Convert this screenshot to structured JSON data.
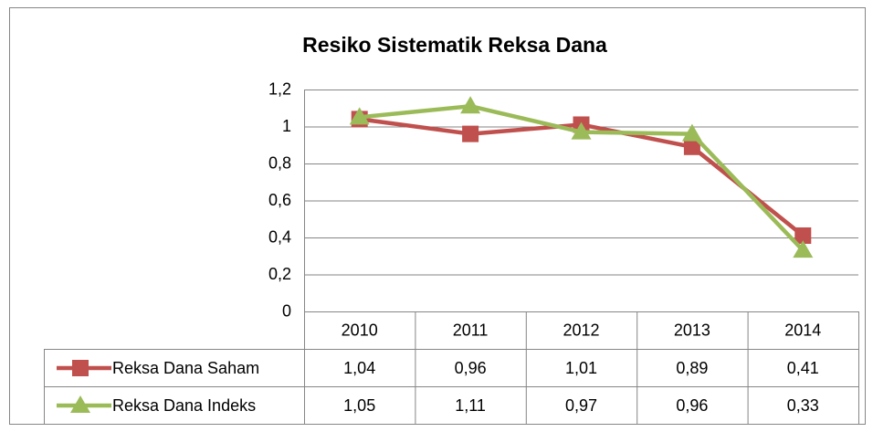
{
  "chart_data": {
    "type": "line",
    "title": "Resiko Sistematik Reksa Dana",
    "categories": [
      "2010",
      "2011",
      "2012",
      "2013",
      "2014"
    ],
    "series": [
      {
        "name": "Reksa Dana Saham",
        "color": "#c0504d",
        "marker": "square",
        "values": [
          1.04,
          0.96,
          1.01,
          0.89,
          0.41
        ],
        "value_labels": [
          "1,04",
          "0,96",
          "1,01",
          "0,89",
          "0,41"
        ]
      },
      {
        "name": "Reksa Dana Indeks",
        "color": "#9bbb59",
        "marker": "triangle",
        "values": [
          1.05,
          1.11,
          0.97,
          0.96,
          0.33
        ],
        "value_labels": [
          "1,05",
          "1,11",
          "0,97",
          "0,96",
          "0,33"
        ]
      }
    ],
    "ylim": [
      0,
      1.2
    ],
    "yticks": [
      0,
      {
        "value": 0.2,
        "label": "0,2"
      },
      {
        "value": 0.4,
        "label": "0,4"
      },
      {
        "value": 0.6,
        "label": "0,6"
      },
      {
        "value": 0.8,
        "label": "0,8"
      },
      1,
      {
        "value": 1.2,
        "label": "1,2"
      }
    ],
    "grid": true,
    "legend": "data-table"
  }
}
